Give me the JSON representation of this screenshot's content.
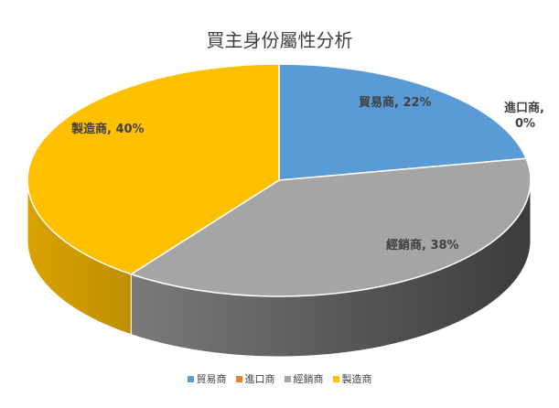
{
  "chart_data": {
    "type": "pie",
    "title": "買主身份屬性分析",
    "three_d": true,
    "legend_position": "bottom",
    "categories": [
      "貿易商",
      "進口商",
      "經銷商",
      "製造商"
    ],
    "values": [
      22,
      0,
      38,
      40
    ],
    "unit": "%",
    "colors": [
      "#5b9bd5",
      "#ed7d31",
      "#a5a5a5",
      "#ffc000"
    ],
    "data_labels": [
      "貿易商, 22%",
      "進口商,\n0%",
      "經銷商, 38%",
      "製造商, 40%"
    ]
  }
}
